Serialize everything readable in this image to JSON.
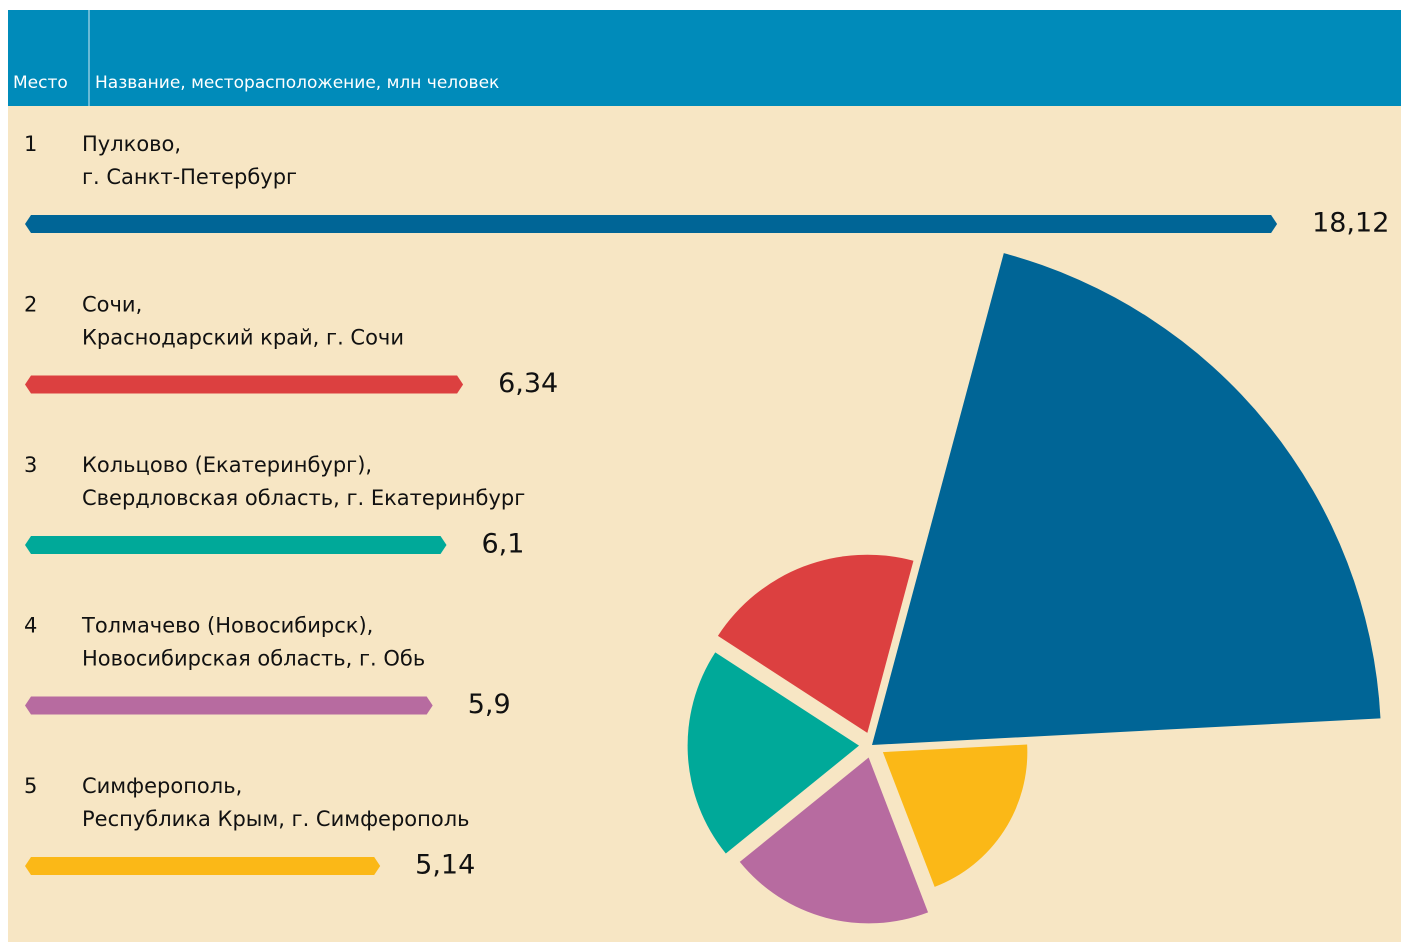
{
  "chart_data": {
    "type": "bar",
    "columns": [
      "Место",
      "Название, месторасположение, млн человек"
    ],
    "ranks": [
      1,
      2,
      3,
      4,
      5
    ],
    "categories": [
      "Пулково,",
      "Сочи,",
      "Кольцово (Екатеринбург),",
      "Толмачево (Новосибирск),",
      "Симферополь,"
    ],
    "locations": [
      "г. Санкт-Петербург",
      "Краснодарский край, г. Сочи",
      "Свердловская область, г. Екатеринбург",
      "Новосибирская область, г. Обь",
      "Республика Крым, г. Симферополь"
    ],
    "values": [
      18.12,
      6.34,
      6.1,
      5.9,
      5.14
    ],
    "value_labels": [
      "18,12",
      "6,34",
      "6,1",
      "5,9",
      "5,14"
    ],
    "colors": [
      "#006596",
      "#dc4040",
      "#00a999",
      "#b76ba0",
      "#fbb817"
    ]
  }
}
